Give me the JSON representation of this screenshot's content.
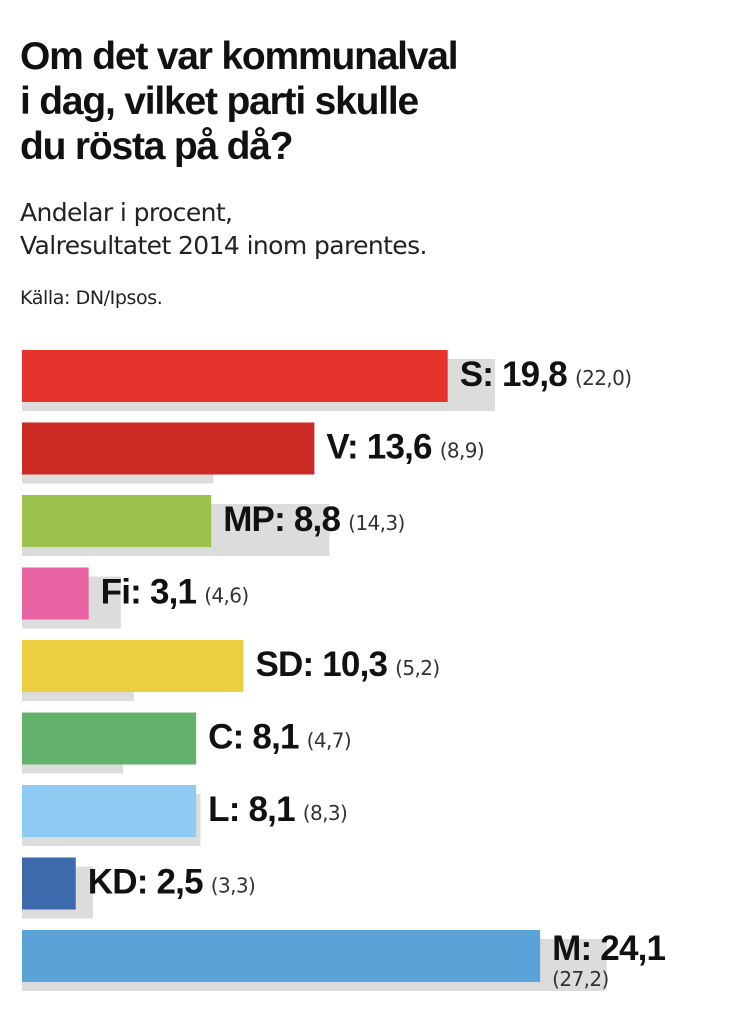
{
  "title": {
    "lines": [
      "Om det var kommunalval",
      "i dag, vilket parti skulle",
      "du rösta på då?"
    ]
  },
  "subtitle": {
    "lines": [
      "Andelar i procent,",
      "Valresultatet 2014 inom parentes."
    ]
  },
  "source": "Källa: DN/Ipsos.",
  "chart_data": {
    "type": "bar",
    "orientation": "horizontal",
    "title": "Om det var kommunalval i dag, vilket parti skulle du rösta på då?",
    "subtitle": "Andelar i procent, Valresultatet 2014 inom parentes.",
    "xlim": [
      0,
      30
    ],
    "categories": [
      "S",
      "V",
      "MP",
      "Fi",
      "SD",
      "C",
      "L",
      "KD",
      "M"
    ],
    "series": [
      {
        "name": "Ipsos",
        "values": [
          19.8,
          13.6,
          8.8,
          3.1,
          10.3,
          8.1,
          8.1,
          2.5,
          24.1
        ]
      },
      {
        "name": "Valresultatet 2014",
        "values": [
          22.0,
          8.9,
          14.3,
          4.6,
          5.2,
          4.7,
          8.3,
          3.3,
          27.2
        ]
      }
    ],
    "value_labels": [
      "19,8",
      "13,6",
      "8,8",
      "3,1",
      "10,3",
      "8,1",
      "8,1",
      "2,5",
      "24,1"
    ],
    "previous_labels": [
      "(22,0)",
      "(8,9)",
      "(14,3)",
      "(4,6)",
      "(5,2)",
      "(4,7)",
      "(8,3)",
      "(3,3)",
      "(27,2)"
    ],
    "colors": [
      "#e8332d",
      "#cc2a25",
      "#9cc24e",
      "#ea64a4",
      "#ecce40",
      "#63b26b",
      "#8dcbf3",
      "#3d6aac",
      "#5aa3d9"
    ],
    "previous_color": "#dcdcdd"
  }
}
